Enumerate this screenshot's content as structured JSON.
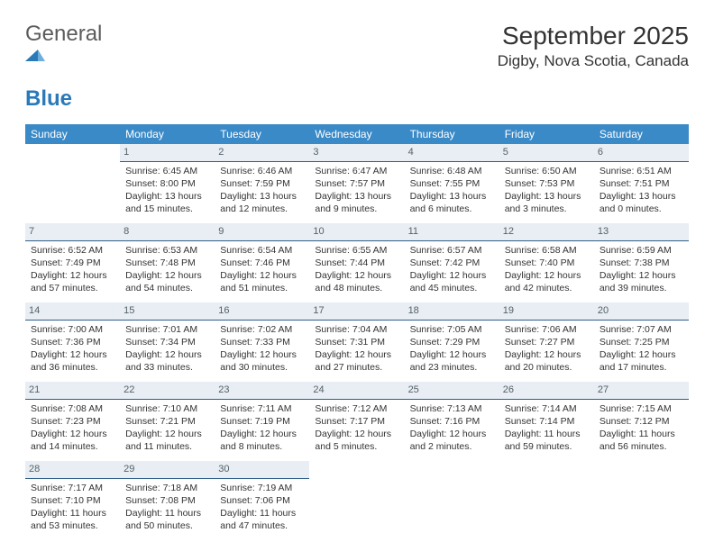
{
  "brand": {
    "firstWord": "General",
    "secondWord": "Blue"
  },
  "header": {
    "title": "September 2025",
    "location": "Digby, Nova Scotia, Canada"
  },
  "colors": {
    "headerBg": "#3a8ac8",
    "headerText": "#ffffff",
    "dayBarBg": "#e8eef3",
    "dayBarText": "#55606a",
    "dayBarBorder": "#2f5e88",
    "bodyText": "#333333",
    "brandBlue": "#2a7ab9",
    "brandGray": "#5b5b5b",
    "pageBg": "#ffffff"
  },
  "typography": {
    "titleFontSize": 28,
    "locationFontSize": 17,
    "weekdayFontSize": 12,
    "cellFontSize": 10.5,
    "logoFontSize": 24
  },
  "layout": {
    "widthPx": 792,
    "heightPx": 612,
    "columns": 7,
    "rows": 5
  },
  "weekdays": [
    "Sunday",
    "Monday",
    "Tuesday",
    "Wednesday",
    "Thursday",
    "Friday",
    "Saturday"
  ],
  "weeks": [
    [
      null,
      {
        "dayNum": "1",
        "sunrise": "Sunrise: 6:45 AM",
        "sunset": "Sunset: 8:00 PM",
        "daylight1": "Daylight: 13 hours",
        "daylight2": "and 15 minutes."
      },
      {
        "dayNum": "2",
        "sunrise": "Sunrise: 6:46 AM",
        "sunset": "Sunset: 7:59 PM",
        "daylight1": "Daylight: 13 hours",
        "daylight2": "and 12 minutes."
      },
      {
        "dayNum": "3",
        "sunrise": "Sunrise: 6:47 AM",
        "sunset": "Sunset: 7:57 PM",
        "daylight1": "Daylight: 13 hours",
        "daylight2": "and 9 minutes."
      },
      {
        "dayNum": "4",
        "sunrise": "Sunrise: 6:48 AM",
        "sunset": "Sunset: 7:55 PM",
        "daylight1": "Daylight: 13 hours",
        "daylight2": "and 6 minutes."
      },
      {
        "dayNum": "5",
        "sunrise": "Sunrise: 6:50 AM",
        "sunset": "Sunset: 7:53 PM",
        "daylight1": "Daylight: 13 hours",
        "daylight2": "and 3 minutes."
      },
      {
        "dayNum": "6",
        "sunrise": "Sunrise: 6:51 AM",
        "sunset": "Sunset: 7:51 PM",
        "daylight1": "Daylight: 13 hours",
        "daylight2": "and 0 minutes."
      }
    ],
    [
      {
        "dayNum": "7",
        "sunrise": "Sunrise: 6:52 AM",
        "sunset": "Sunset: 7:49 PM",
        "daylight1": "Daylight: 12 hours",
        "daylight2": "and 57 minutes."
      },
      {
        "dayNum": "8",
        "sunrise": "Sunrise: 6:53 AM",
        "sunset": "Sunset: 7:48 PM",
        "daylight1": "Daylight: 12 hours",
        "daylight2": "and 54 minutes."
      },
      {
        "dayNum": "9",
        "sunrise": "Sunrise: 6:54 AM",
        "sunset": "Sunset: 7:46 PM",
        "daylight1": "Daylight: 12 hours",
        "daylight2": "and 51 minutes."
      },
      {
        "dayNum": "10",
        "sunrise": "Sunrise: 6:55 AM",
        "sunset": "Sunset: 7:44 PM",
        "daylight1": "Daylight: 12 hours",
        "daylight2": "and 48 minutes."
      },
      {
        "dayNum": "11",
        "sunrise": "Sunrise: 6:57 AM",
        "sunset": "Sunset: 7:42 PM",
        "daylight1": "Daylight: 12 hours",
        "daylight2": "and 45 minutes."
      },
      {
        "dayNum": "12",
        "sunrise": "Sunrise: 6:58 AM",
        "sunset": "Sunset: 7:40 PM",
        "daylight1": "Daylight: 12 hours",
        "daylight2": "and 42 minutes."
      },
      {
        "dayNum": "13",
        "sunrise": "Sunrise: 6:59 AM",
        "sunset": "Sunset: 7:38 PM",
        "daylight1": "Daylight: 12 hours",
        "daylight2": "and 39 minutes."
      }
    ],
    [
      {
        "dayNum": "14",
        "sunrise": "Sunrise: 7:00 AM",
        "sunset": "Sunset: 7:36 PM",
        "daylight1": "Daylight: 12 hours",
        "daylight2": "and 36 minutes."
      },
      {
        "dayNum": "15",
        "sunrise": "Sunrise: 7:01 AM",
        "sunset": "Sunset: 7:34 PM",
        "daylight1": "Daylight: 12 hours",
        "daylight2": "and 33 minutes."
      },
      {
        "dayNum": "16",
        "sunrise": "Sunrise: 7:02 AM",
        "sunset": "Sunset: 7:33 PM",
        "daylight1": "Daylight: 12 hours",
        "daylight2": "and 30 minutes."
      },
      {
        "dayNum": "17",
        "sunrise": "Sunrise: 7:04 AM",
        "sunset": "Sunset: 7:31 PM",
        "daylight1": "Daylight: 12 hours",
        "daylight2": "and 27 minutes."
      },
      {
        "dayNum": "18",
        "sunrise": "Sunrise: 7:05 AM",
        "sunset": "Sunset: 7:29 PM",
        "daylight1": "Daylight: 12 hours",
        "daylight2": "and 23 minutes."
      },
      {
        "dayNum": "19",
        "sunrise": "Sunrise: 7:06 AM",
        "sunset": "Sunset: 7:27 PM",
        "daylight1": "Daylight: 12 hours",
        "daylight2": "and 20 minutes."
      },
      {
        "dayNum": "20",
        "sunrise": "Sunrise: 7:07 AM",
        "sunset": "Sunset: 7:25 PM",
        "daylight1": "Daylight: 12 hours",
        "daylight2": "and 17 minutes."
      }
    ],
    [
      {
        "dayNum": "21",
        "sunrise": "Sunrise: 7:08 AM",
        "sunset": "Sunset: 7:23 PM",
        "daylight1": "Daylight: 12 hours",
        "daylight2": "and 14 minutes."
      },
      {
        "dayNum": "22",
        "sunrise": "Sunrise: 7:10 AM",
        "sunset": "Sunset: 7:21 PM",
        "daylight1": "Daylight: 12 hours",
        "daylight2": "and 11 minutes."
      },
      {
        "dayNum": "23",
        "sunrise": "Sunrise: 7:11 AM",
        "sunset": "Sunset: 7:19 PM",
        "daylight1": "Daylight: 12 hours",
        "daylight2": "and 8 minutes."
      },
      {
        "dayNum": "24",
        "sunrise": "Sunrise: 7:12 AM",
        "sunset": "Sunset: 7:17 PM",
        "daylight1": "Daylight: 12 hours",
        "daylight2": "and 5 minutes."
      },
      {
        "dayNum": "25",
        "sunrise": "Sunrise: 7:13 AM",
        "sunset": "Sunset: 7:16 PM",
        "daylight1": "Daylight: 12 hours",
        "daylight2": "and 2 minutes."
      },
      {
        "dayNum": "26",
        "sunrise": "Sunrise: 7:14 AM",
        "sunset": "Sunset: 7:14 PM",
        "daylight1": "Daylight: 11 hours",
        "daylight2": "and 59 minutes."
      },
      {
        "dayNum": "27",
        "sunrise": "Sunrise: 7:15 AM",
        "sunset": "Sunset: 7:12 PM",
        "daylight1": "Daylight: 11 hours",
        "daylight2": "and 56 minutes."
      }
    ],
    [
      {
        "dayNum": "28",
        "sunrise": "Sunrise: 7:17 AM",
        "sunset": "Sunset: 7:10 PM",
        "daylight1": "Daylight: 11 hours",
        "daylight2": "and 53 minutes."
      },
      {
        "dayNum": "29",
        "sunrise": "Sunrise: 7:18 AM",
        "sunset": "Sunset: 7:08 PM",
        "daylight1": "Daylight: 11 hours",
        "daylight2": "and 50 minutes."
      },
      {
        "dayNum": "30",
        "sunrise": "Sunrise: 7:19 AM",
        "sunset": "Sunset: 7:06 PM",
        "daylight1": "Daylight: 11 hours",
        "daylight2": "and 47 minutes."
      },
      null,
      null,
      null,
      null
    ]
  ]
}
